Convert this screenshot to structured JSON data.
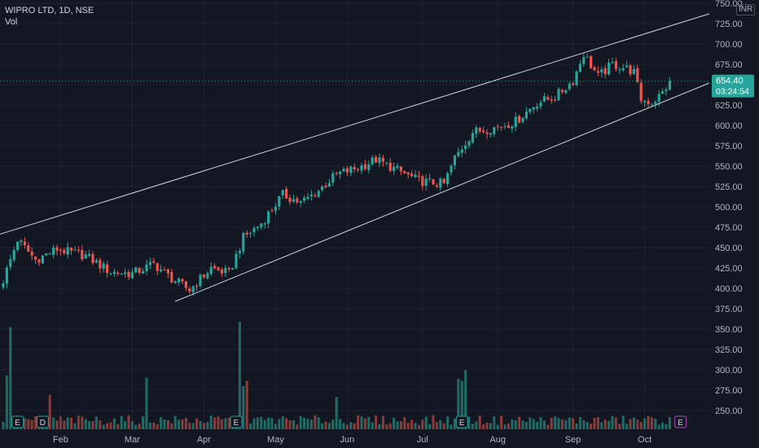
{
  "chart_data": {
    "type": "candlestick",
    "symbol": "WIPRO LTD",
    "interval": "1D",
    "exchange": "NSE",
    "volume_label": "Vol",
    "currency": "INR",
    "last_price": "654.40",
    "countdown": "03:24:54",
    "y_axis": {
      "range": [
        228,
        752
      ],
      "ticks": [
        250,
        275,
        300,
        325,
        350,
        375,
        400,
        425,
        450,
        475,
        500,
        525,
        550,
        575,
        600,
        625,
        650,
        675,
        700,
        725,
        750
      ],
      "tick_labels": [
        "250.00",
        "275.00",
        "300.00",
        "325.00",
        "350.00",
        "375.00",
        "400.00",
        "425.00",
        "450.00",
        "475.00",
        "500.00",
        "525.00",
        "550.00",
        "575.00",
        "600.00",
        "625.00",
        "650.00",
        "675.00",
        "700.00",
        "725.00",
        "750.00"
      ]
    },
    "x_axis": {
      "labels": [
        "Feb",
        "Mar",
        "Apr",
        "May",
        "Jun",
        "Jul",
        "Aug",
        "Sep",
        "Oct"
      ],
      "label_bar_index": [
        16,
        36,
        56,
        76,
        96,
        117,
        138,
        159,
        179
      ]
    },
    "keypoints": [
      {
        "i": 0,
        "p": 410
      },
      {
        "i": 4,
        "p": 460
      },
      {
        "i": 9,
        "p": 435
      },
      {
        "i": 15,
        "p": 448
      },
      {
        "i": 23,
        "p": 440
      },
      {
        "i": 30,
        "p": 420
      },
      {
        "i": 36,
        "p": 418
      },
      {
        "i": 42,
        "p": 430
      },
      {
        "i": 47,
        "p": 412
      },
      {
        "i": 52,
        "p": 398
      },
      {
        "i": 58,
        "p": 425
      },
      {
        "i": 63,
        "p": 418
      },
      {
        "i": 67,
        "p": 462
      },
      {
        "i": 72,
        "p": 480
      },
      {
        "i": 78,
        "p": 515
      },
      {
        "i": 83,
        "p": 505
      },
      {
        "i": 88,
        "p": 520
      },
      {
        "i": 93,
        "p": 540
      },
      {
        "i": 99,
        "p": 548
      },
      {
        "i": 104,
        "p": 558
      },
      {
        "i": 110,
        "p": 545
      },
      {
        "i": 116,
        "p": 532
      },
      {
        "i": 123,
        "p": 528
      },
      {
        "i": 126,
        "p": 560
      },
      {
        "i": 131,
        "p": 592
      },
      {
        "i": 138,
        "p": 598
      },
      {
        "i": 143,
        "p": 605
      },
      {
        "i": 149,
        "p": 628
      },
      {
        "i": 154,
        "p": 635
      },
      {
        "i": 159,
        "p": 655
      },
      {
        "i": 162,
        "p": 688
      },
      {
        "i": 166,
        "p": 660
      },
      {
        "i": 170,
        "p": 675
      },
      {
        "i": 174,
        "p": 670
      },
      {
        "i": 176,
        "p": 665
      },
      {
        "i": 178,
        "p": 632
      },
      {
        "i": 181,
        "p": 628
      },
      {
        "i": 184,
        "p": 640
      },
      {
        "i": 186,
        "p": 654.4
      }
    ],
    "volume_spikes": [
      {
        "i": 2,
        "v": 0.95
      },
      {
        "i": 66,
        "v": 1.0
      },
      {
        "i": 40,
        "v": 0.48
      },
      {
        "i": 1,
        "v": 0.5
      },
      {
        "i": 127,
        "v": 0.47
      },
      {
        "i": 128,
        "v": 0.45
      },
      {
        "i": 129,
        "v": 0.55
      },
      {
        "i": 93,
        "v": 0.3
      },
      {
        "i": 67,
        "v": 0.4
      },
      {
        "i": 68,
        "v": 0.45
      },
      {
        "i": 13,
        "v": 0.32
      }
    ],
    "trendlines": [
      {
        "start": {
          "i": -2,
          "p": 465
        },
        "end": {
          "i": 197,
          "p": 737
        },
        "color": "#d1d4dc"
      },
      {
        "start": {
          "i": 48,
          "p": 384
        },
        "end": {
          "i": 197,
          "p": 652
        },
        "color": "#d1d4dc"
      }
    ],
    "last_price_line": {
      "price": 654.4
    },
    "event_markers": [
      {
        "i": 4,
        "label": "E",
        "color": "#26a69a"
      },
      {
        "i": 11,
        "label": "D",
        "color": "#26a69a"
      },
      {
        "i": 65,
        "label": "E",
        "color": "#26a69a"
      },
      {
        "i": 128,
        "label": "E",
        "color": "#26a69a"
      },
      {
        "i": 189,
        "label": "E",
        "color": "#ab47bc"
      }
    ],
    "colors": {
      "background": "#131722",
      "up": "#26a69a",
      "down": "#ef5350",
      "volume_up": "#1f6b66",
      "volume_down": "#8a3b3b",
      "grid": "#1e222d",
      "price_badge": "#26a69a"
    }
  }
}
